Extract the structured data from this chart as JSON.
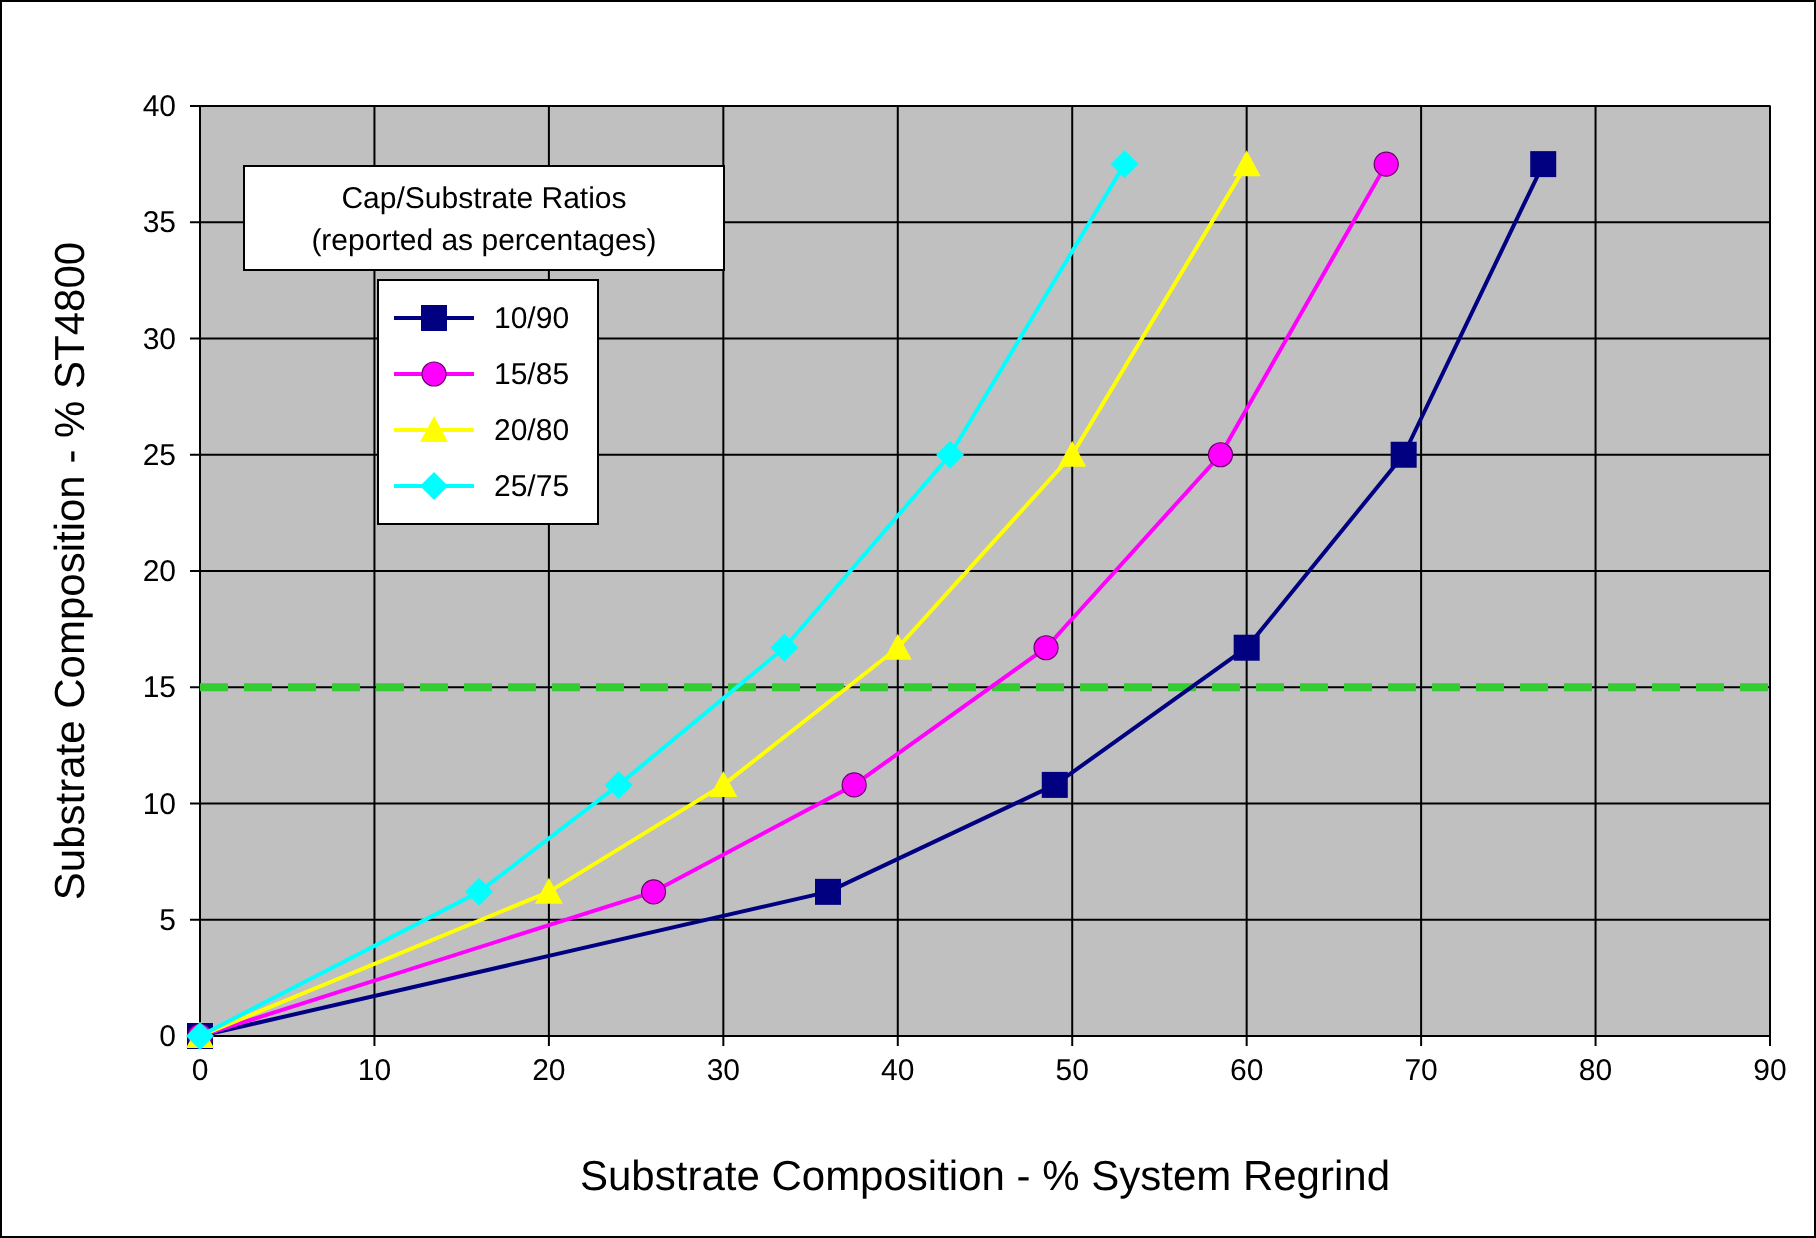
{
  "chart_data": {
    "type": "line",
    "xlabel": "Substrate Composition - % System Regrind",
    "ylabel": "Substrate Composition - % ST4800",
    "legend_title": "Cap/Substrate Ratios (reported as percentages)",
    "legend": "top left",
    "grid": true,
    "xlim": [
      0,
      90
    ],
    "xticks": [
      0,
      10,
      20,
      30,
      40,
      50,
      60,
      70,
      80,
      90
    ],
    "ylim": [
      0,
      40
    ],
    "yticks": [
      0,
      5,
      10,
      15,
      20,
      25,
      30,
      35,
      40
    ],
    "series": [
      {
        "name": "10/90",
        "color": "#000080",
        "marker": "square",
        "x": [
          0,
          36,
          49,
          60,
          69,
          77
        ],
        "values": [
          0,
          6.2,
          10.8,
          16.7,
          25,
          37.5
        ]
      },
      {
        "name": "15/85",
        "color": "#ff00ff",
        "marker": "circle",
        "x": [
          0,
          26,
          37.5,
          48.5,
          58.5,
          68
        ],
        "values": [
          0,
          6.2,
          10.8,
          16.7,
          25,
          37.5
        ]
      },
      {
        "name": "20/80",
        "color": "#ffff00",
        "marker": "triangle",
        "x": [
          0,
          20,
          30,
          40,
          50,
          60
        ],
        "values": [
          0,
          6.2,
          10.8,
          16.7,
          25,
          37.5
        ]
      },
      {
        "name": "25/75",
        "color": "#00ffff",
        "marker": "diamond",
        "x": [
          0,
          16,
          24,
          33.5,
          43,
          53
        ],
        "values": [
          0,
          6.2,
          10.8,
          16.7,
          25,
          37.5
        ]
      }
    ],
    "ref_lines": [
      {
        "axis": "y",
        "value": 15,
        "color": "#33cc33",
        "line_style": "dashed"
      }
    ]
  }
}
